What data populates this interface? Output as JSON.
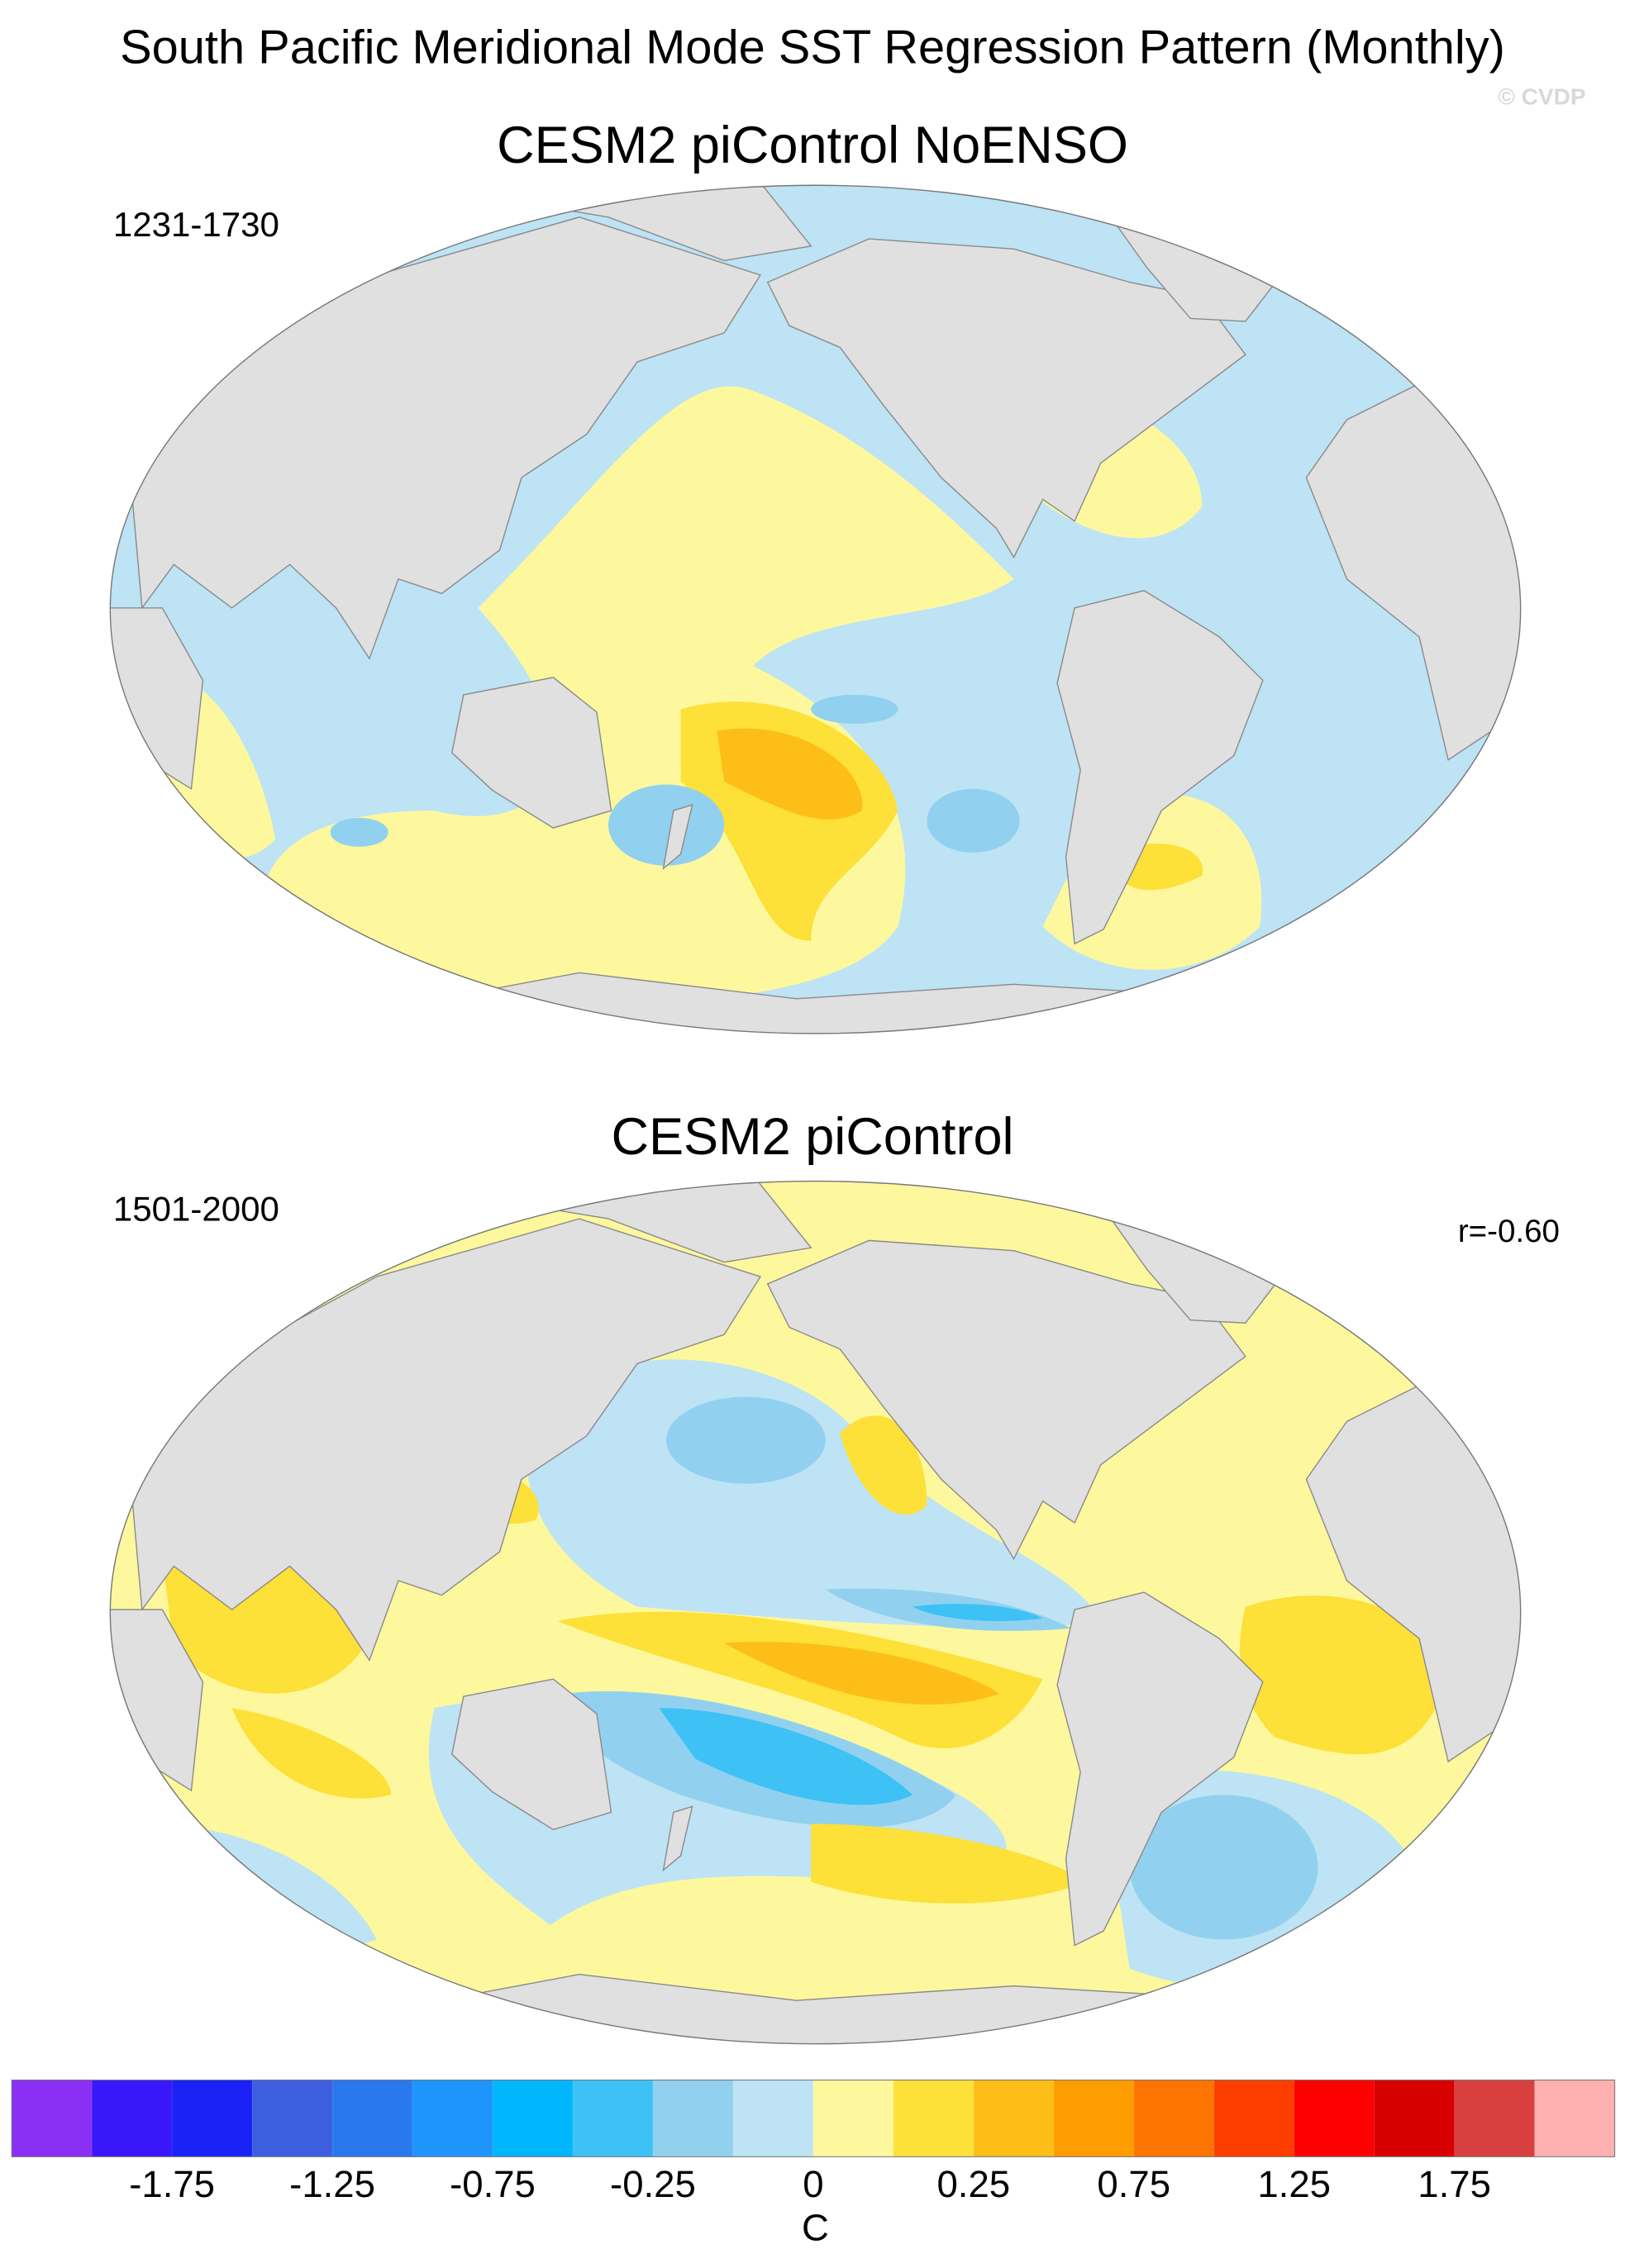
{
  "figure": {
    "title": "South Pacific Meridional Mode SST Regression Pattern (Monthly)",
    "watermark": "© CVDP",
    "panels": [
      {
        "title": "CESM2 piControl NoENSO",
        "period": "1231-1730"
      },
      {
        "title": "CESM2 piControl",
        "period": "1501-2000",
        "stat": "r=-0.60"
      }
    ],
    "colorbar": {
      "colors": [
        "#8b2ff5",
        "#3a17fa",
        "#1a22f5",
        "#3e5ee0",
        "#2a78ee",
        "#1e95fd",
        "#00b6fd",
        "#3ec1f5",
        "#91d1ef",
        "#bde3f5",
        "#fdf89d",
        "#fde038",
        "#fdbe18",
        "#fd9d00",
        "#fd7400",
        "#fd3e00",
        "#fd0000",
        "#d60000",
        "#d84040",
        "#ffb0b0"
      ],
      "levels": [
        -2,
        -1.75,
        -1.5,
        -1.25,
        -1,
        -0.75,
        -0.5,
        -0.25,
        -0.1,
        0,
        0.1,
        0.25,
        0.5,
        0.75,
        1,
        1.25,
        1.5,
        1.75,
        2
      ],
      "ticks": [
        -1.75,
        -1.25,
        -0.75,
        -0.25,
        0,
        0.25,
        0.75,
        1.25,
        1.75
      ],
      "unit": "C"
    }
  }
}
